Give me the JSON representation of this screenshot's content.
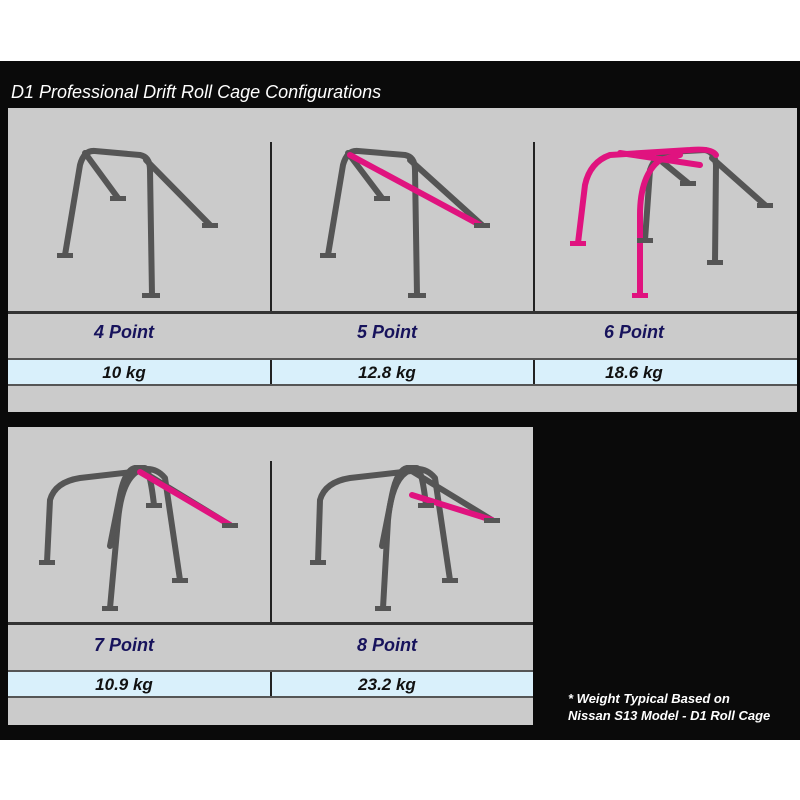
{
  "title": "D1 Professional Drift Roll Cage Configurations",
  "configurations": [
    {
      "label": "4 Point",
      "weight": "10 kg"
    },
    {
      "label": "5 Point",
      "weight": "12.8 kg"
    },
    {
      "label": "6 Point",
      "weight": "18.6 kg"
    },
    {
      "label": "7 Point",
      "weight": "10.9 kg"
    },
    {
      "label": "8 Point",
      "weight": "23.2 kg"
    }
  ],
  "footnote": {
    "line1": "* Weight Typical Based on",
    "line2": "Nissan S13 Model - D1 Roll Cage"
  },
  "colors": {
    "background": "#0a0a0a",
    "panel": "#cbcbcb",
    "weight_row": "#d9f0fb",
    "label_text": "#17135c",
    "tube": "#555555",
    "highlight_tube": "#e0137f"
  }
}
